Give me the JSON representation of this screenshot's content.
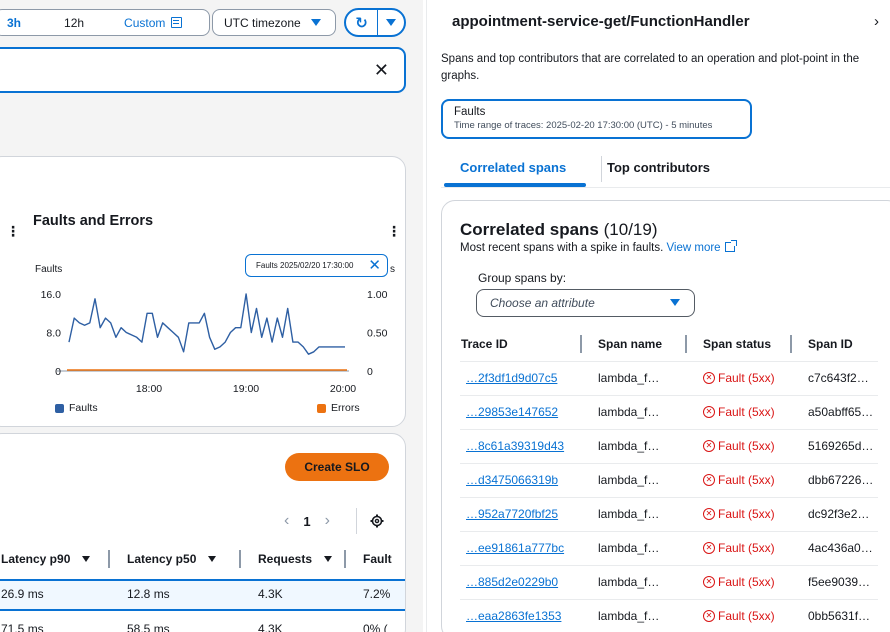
{
  "toolbar": {
    "range_3h": "3h",
    "range_12h": "12h",
    "range_custom": "Custom",
    "timezone": "UTC timezone"
  },
  "chart": {
    "title": "Faults and Errors",
    "ylabel": "Faults",
    "tooltip": "Faults 2025/02/20 17:30:00",
    "tooltip_tail": "s",
    "legend_faults": "Faults",
    "legend_errors": "Errors"
  },
  "chart_data": {
    "type": "line",
    "title": "Faults and Errors",
    "ylabel": "Faults",
    "x_ticks": [
      "18:00",
      "19:00",
      "20:00"
    ],
    "y_ticks_left": [
      "16.0",
      "8.0",
      "0"
    ],
    "y_ticks_right": [
      "1.00",
      "0.50",
      "0"
    ],
    "ylim": [
      0,
      16
    ],
    "ylim_right": [
      0,
      1
    ],
    "grid": false,
    "legend": "bottom",
    "series": [
      {
        "name": "Faults",
        "color": "#2e5fa3",
        "x": [
          "17:07",
          "17:10",
          "17:13",
          "17:17",
          "17:20",
          "17:23",
          "17:27",
          "17:30",
          "17:33",
          "17:37",
          "17:40",
          "17:43",
          "17:47",
          "17:50",
          "17:53",
          "17:57",
          "18:00",
          "18:03",
          "18:07",
          "18:10",
          "18:13",
          "18:17",
          "18:20",
          "18:23",
          "18:27",
          "18:30",
          "18:33",
          "18:37",
          "18:40",
          "18:43",
          "18:47",
          "18:50",
          "18:53",
          "18:57",
          "19:00",
          "19:03",
          "19:07",
          "19:10",
          "19:13",
          "19:17",
          "19:20",
          "19:23",
          "19:27",
          "19:30",
          "19:33",
          "19:37",
          "19:40",
          "19:43",
          "19:47",
          "19:50",
          "19:53",
          "19:57",
          "20:00",
          "20:03"
        ],
        "values": [
          6,
          11,
          10,
          9.5,
          10,
          15,
          9,
          11,
          10,
          7,
          9,
          8,
          7.5,
          7,
          6,
          12,
          12,
          7,
          10,
          9,
          8,
          7,
          4,
          10,
          10,
          10,
          12,
          7,
          4.5,
          5,
          6,
          8,
          9,
          9,
          16,
          8,
          13,
          7,
          11,
          6,
          11,
          7,
          13,
          6,
          6,
          5,
          3.5,
          4,
          5,
          5,
          5,
          5,
          5,
          5
        ]
      },
      {
        "name": "Errors",
        "color": "#ec7211",
        "values": [
          0
        ]
      }
    ]
  },
  "slo": {
    "create_label": "Create SLO"
  },
  "pager": {
    "page": "1"
  },
  "table": {
    "headers": [
      "Latency p90",
      "Latency p50",
      "Requests",
      "Fault"
    ],
    "rows": [
      [
        "26.9 ms",
        "12.8 ms",
        "4.3K",
        "7.2%"
      ],
      [
        "71.5 ms",
        "58.5 ms",
        "4.3K",
        "0% ("
      ]
    ]
  },
  "panel": {
    "title": "appointment-service-get/FunctionHandler",
    "description": "Spans and top contributors that are correlated to an operation and plot-point in the graphs.",
    "faults_label": "Faults",
    "time_range": "Time range of traces: 2025-02-20 17:30:00 (UTC) - 5 minutes",
    "tab_correlated": "Correlated spans",
    "tab_top": "Top contributors",
    "spans_title": "Correlated spans",
    "spans_count": "(10/19)",
    "spans_sub": "Most recent spans with a spike in faults.",
    "view_more": "View more",
    "group_label": "Group spans by:",
    "attr_placeholder": "Choose an attribute",
    "headers": [
      "Trace ID",
      "Span name",
      "Span status",
      "Span ID"
    ],
    "rows": [
      [
        "…2f3df1d9d07c5",
        "lambda_f…",
        "Fault (5xx)",
        "c7c643f2…"
      ],
      [
        "…29853e147652",
        "lambda_f…",
        "Fault (5xx)",
        "a50abff65…"
      ],
      [
        "…8c61a39319d43",
        "lambda_f…",
        "Fault (5xx)",
        "5169265d…"
      ],
      [
        "…d3475066319b",
        "lambda_f…",
        "Fault (5xx)",
        "dbb67226…"
      ],
      [
        "…952a7720fbf25",
        "lambda_f…",
        "Fault (5xx)",
        "dc92f3e2…"
      ],
      [
        "…ee91861a777bc",
        "lambda_f…",
        "Fault (5xx)",
        "4ac436a0…"
      ],
      [
        "…885d2e0229b0",
        "lambda_f…",
        "Fault (5xx)",
        "f5ee9039…"
      ],
      [
        "…eaa2863fe1353",
        "lambda_f…",
        "Fault (5xx)",
        "0bb5631f…"
      ]
    ]
  }
}
